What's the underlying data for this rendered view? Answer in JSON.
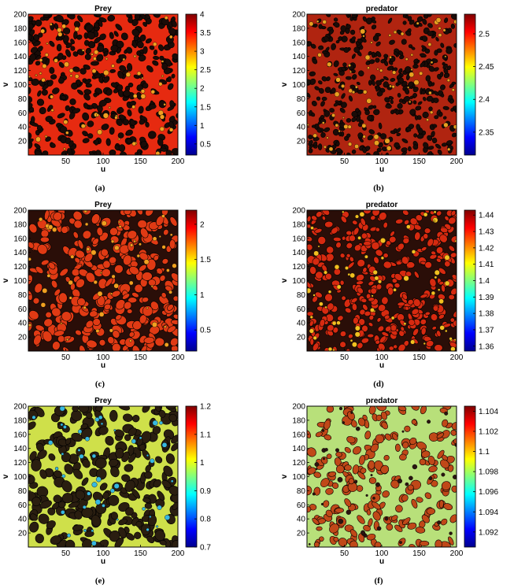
{
  "panels": [
    {
      "caption": "(a)",
      "colors": {
        "background": "#e62a10",
        "spot": "#1a0c08",
        "accent": "#f0a020"
      }
    },
    {
      "caption": "(b)",
      "colors": {
        "background": "#b02410",
        "spot": "#1a0c08",
        "accent": "#e8a020"
      }
    },
    {
      "caption": "(c)",
      "colors": {
        "background": "#2a0e08",
        "spot": "#e03a14",
        "accent": "#f0a020"
      }
    },
    {
      "caption": "(d)",
      "colors": {
        "background": "#2a0e08",
        "spot": "#d62a10",
        "accent": "#f2c020"
      }
    },
    {
      "caption": "(e)",
      "colors": {
        "background": "#cfe04a",
        "spot": "#2a1e10",
        "accent": "#38b8e0"
      }
    },
    {
      "caption": "(f)",
      "colors": {
        "background": "#b8e07a",
        "spot": "#c04818",
        "accent": "#2a1410"
      }
    }
  ],
  "chart_data": [
    {
      "type": "heatmap",
      "title": "Prey",
      "xlabel": "u",
      "ylabel": "v",
      "xlim": [
        0,
        200
      ],
      "ylim": [
        0,
        200
      ],
      "xticks": [
        50,
        100,
        150,
        200
      ],
      "yticks": [
        20,
        40,
        60,
        80,
        100,
        120,
        140,
        160,
        180,
        200
      ],
      "colorbar": {
        "min": 0.2,
        "max": 4,
        "ticks": [
          "0.5",
          "1",
          "1.5",
          "2",
          "2.5",
          "3",
          "3.5",
          "4"
        ]
      }
    },
    {
      "type": "heatmap",
      "title": "predator",
      "xlabel": "u",
      "ylabel": "v",
      "xlim": [
        0,
        200
      ],
      "ylim": [
        0,
        200
      ],
      "xticks": [
        50,
        100,
        150,
        200
      ],
      "yticks": [
        20,
        40,
        60,
        80,
        100,
        120,
        140,
        160,
        180,
        200
      ],
      "colorbar": {
        "min": 2.315,
        "max": 2.53,
        "ticks": [
          "2.35",
          "2.4",
          "2.45",
          "2.5"
        ]
      }
    },
    {
      "type": "heatmap",
      "title": "Prey",
      "xlabel": "u",
      "ylabel": "v",
      "xlim": [
        0,
        200
      ],
      "ylim": [
        0,
        200
      ],
      "xticks": [
        50,
        100,
        150,
        200
      ],
      "yticks": [
        20,
        40,
        60,
        80,
        100,
        120,
        140,
        160,
        180,
        200
      ],
      "colorbar": {
        "min": 0.2,
        "max": 2.2,
        "ticks": [
          "0.5",
          "1",
          "1.5",
          "2"
        ]
      }
    },
    {
      "type": "heatmap",
      "title": "predator",
      "xlabel": "u",
      "ylabel": "v",
      "xlim": [
        0,
        200
      ],
      "ylim": [
        0,
        200
      ],
      "xticks": [
        50,
        100,
        150,
        200
      ],
      "yticks": [
        20,
        40,
        60,
        80,
        100,
        120,
        140,
        160,
        180,
        200
      ],
      "colorbar": {
        "min": 1.357,
        "max": 1.443,
        "ticks": [
          "1.36",
          "1.37",
          "1.38",
          "1.39",
          "1.4",
          "1.41",
          "1.42",
          "1.43",
          "1.44"
        ]
      }
    },
    {
      "type": "heatmap",
      "title": "Prey",
      "xlabel": "u",
      "ylabel": "v",
      "xlim": [
        0,
        200
      ],
      "ylim": [
        0,
        200
      ],
      "xticks": [
        50,
        100,
        150,
        200
      ],
      "yticks": [
        20,
        40,
        60,
        80,
        100,
        120,
        140,
        160,
        180,
        200
      ],
      "colorbar": {
        "min": 0.7,
        "max": 1.2,
        "ticks": [
          "0.7",
          "0.8",
          "0.9",
          "1",
          "1.1",
          "1.2"
        ]
      }
    },
    {
      "type": "heatmap",
      "title": "predator",
      "xlabel": "u",
      "ylabel": "v",
      "xlim": [
        0,
        200
      ],
      "ylim": [
        0,
        200
      ],
      "xticks": [
        50,
        100,
        150,
        200
      ],
      "yticks": [
        20,
        40,
        60,
        80,
        100,
        120,
        140,
        160,
        180,
        200
      ],
      "colorbar": {
        "min": 1.0905,
        "max": 1.1045,
        "ticks": [
          "1.092",
          "1.094",
          "1.096",
          "1.098",
          "1.1",
          "1.102",
          "1.104"
        ]
      }
    }
  ]
}
